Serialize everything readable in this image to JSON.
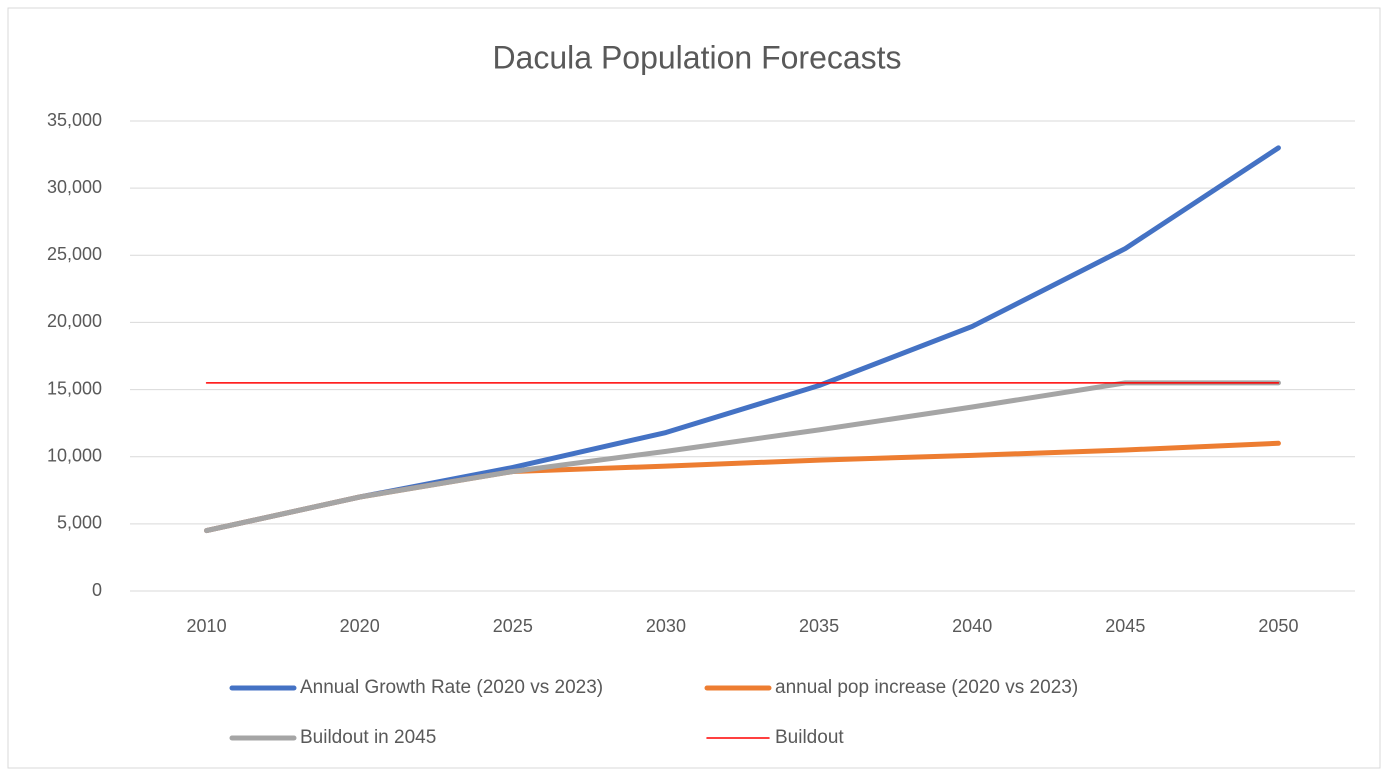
{
  "chart_data": {
    "type": "line",
    "title": "Dacula Population Forecasts",
    "categories": [
      "2010",
      "2020",
      "2025",
      "2030",
      "2035",
      "2040",
      "2045",
      "2050"
    ],
    "series": [
      {
        "name": "Annual Growth Rate (2020 vs 2023)",
        "color": "#4472c4",
        "values": [
          4500,
          7000,
          9200,
          11800,
          15300,
          19700,
          25500,
          33000
        ]
      },
      {
        "name": "annual pop increase (2020 vs 2023)",
        "color": "#ed7d31",
        "values": [
          4500,
          7000,
          8900,
          9300,
          9750,
          10100,
          10500,
          11000
        ]
      },
      {
        "name": "Buildout in 2045",
        "color": "#a5a5a5",
        "values": [
          4500,
          7000,
          8900,
          10400,
          12000,
          13700,
          15500,
          15500
        ]
      },
      {
        "name": "Buildout",
        "color": "#ff0000",
        "values": [
          15500,
          15500,
          15500,
          15500,
          15500,
          15500,
          15500,
          15500
        ]
      }
    ],
    "ylim": [
      0,
      35000
    ],
    "yticks": [
      0,
      {
        "value": 5000,
        "label": "5,000"
      },
      {
        "value": 10000,
        "label": "10,000"
      },
      {
        "value": 15000,
        "label": "15,000"
      },
      {
        "value": 20000,
        "label": "20,000"
      },
      {
        "value": 25000,
        "label": "25,000"
      },
      {
        "value": 30000,
        "label": "30,000"
      },
      {
        "value": 35000,
        "label": "35,000"
      }
    ],
    "grid": true,
    "legend": "bottom"
  }
}
